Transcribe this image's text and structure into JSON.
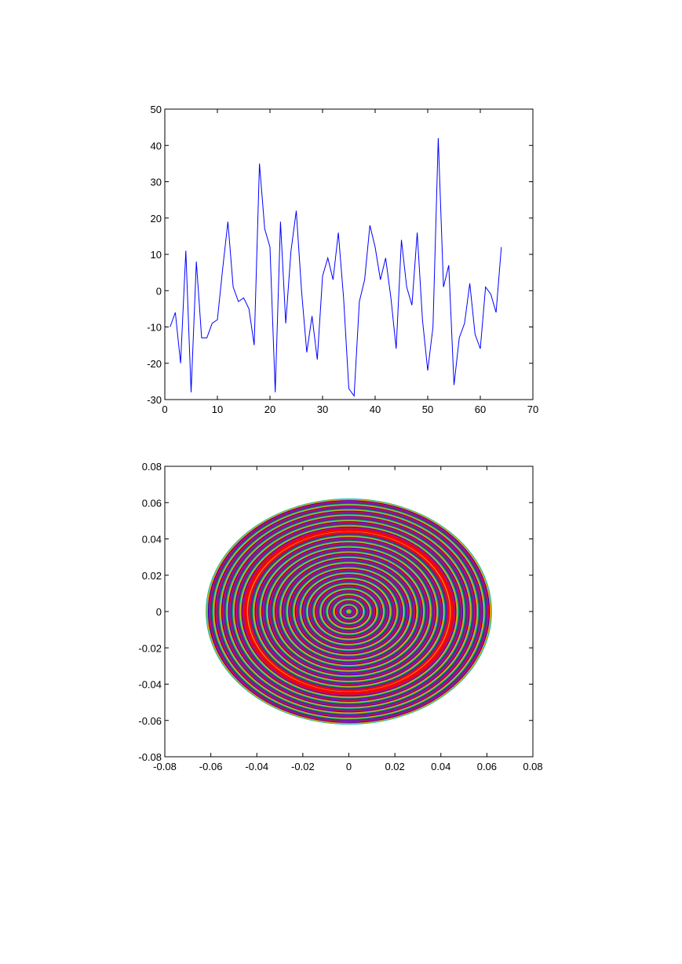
{
  "chart_data": [
    {
      "type": "line",
      "title": "",
      "xlabel": "",
      "ylabel": "",
      "xlim": [
        0,
        70
      ],
      "ylim": [
        -30,
        50
      ],
      "xticks": [
        0,
        10,
        20,
        30,
        40,
        50,
        60,
        70
      ],
      "yticks": [
        -30,
        -20,
        -10,
        0,
        10,
        20,
        30,
        40,
        50
      ],
      "grid": false,
      "series": [
        {
          "color": "#0000ff",
          "x": [
            1,
            2,
            3,
            4,
            5,
            6,
            7,
            8,
            9,
            10,
            11,
            12,
            13,
            14,
            15,
            16,
            17,
            18,
            19,
            20,
            21,
            22,
            23,
            24,
            25,
            26,
            27,
            28,
            29,
            30,
            31,
            32,
            33,
            34,
            35,
            36,
            37,
            38,
            39,
            40,
            41,
            42,
            43,
            44,
            45,
            46,
            47,
            48,
            49,
            50,
            51,
            52,
            53,
            54,
            55,
            56,
            57,
            58,
            59,
            60,
            61,
            62,
            63,
            64
          ],
          "values": [
            -10,
            -6,
            -20,
            11,
            -28,
            8,
            -13,
            -13,
            -9,
            -8,
            6,
            19,
            1,
            -3,
            -2,
            -5,
            -15,
            35,
            17,
            12,
            -28,
            19,
            -9,
            11,
            22,
            0,
            -17,
            -7,
            -19,
            4,
            9,
            3,
            16,
            -2,
            -27,
            -29,
            -3,
            3,
            18,
            12,
            3,
            9,
            -2,
            -16,
            14,
            1,
            -4,
            16,
            -8,
            -22,
            -10,
            42,
            1,
            7,
            -26,
            -13,
            -9,
            2,
            -12,
            -16,
            1,
            -1,
            -6,
            12
          ]
        }
      ]
    },
    {
      "type": "line",
      "title": "",
      "xlabel": "",
      "ylabel": "",
      "xlim": [
        -0.08,
        0.08
      ],
      "ylim": [
        -0.08,
        0.08
      ],
      "xticks": [
        -0.08,
        -0.06,
        -0.04,
        -0.02,
        0,
        0.02,
        0.04,
        0.06,
        0.08
      ],
      "yticks": [
        -0.08,
        -0.06,
        -0.04,
        -0.02,
        0,
        0.02,
        0.04,
        0.06,
        0.08
      ],
      "grid": false,
      "description_free": true,
      "rings": {
        "center": [
          0,
          0
        ],
        "max_radius_x": 0.062,
        "max_radius_y": 0.062,
        "count": 64,
        "colors": [
          "#0000ff",
          "#008000",
          "#ff0000",
          "#00bfbf",
          "#bf00bf",
          "#bfbf00",
          "#404040",
          "#ff8000",
          "#8000ff"
        ]
      }
    }
  ]
}
